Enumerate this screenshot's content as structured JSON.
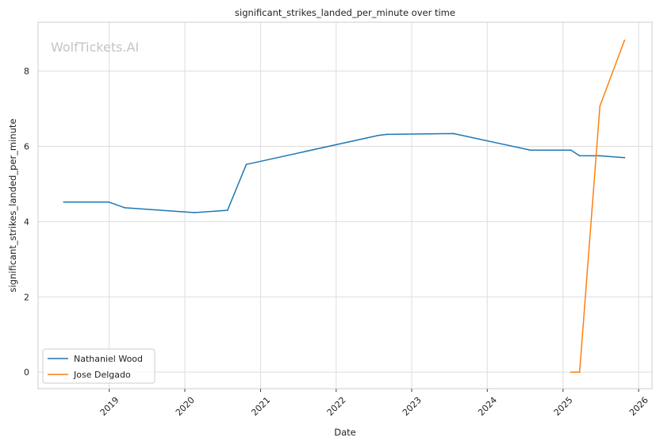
{
  "chart_data": {
    "type": "line",
    "title": "significant_strikes_landed_per_minute over time",
    "xlabel": "Date",
    "ylabel": "significant_strikes_landed_per_minute",
    "watermark": "WolfTickets.AI",
    "xlim": [
      "2018-01-22",
      "2026-03-07"
    ],
    "ylim": [
      -0.44,
      9.3
    ],
    "x_ticks": [
      {
        "date": "2019-01-01",
        "label": "2019"
      },
      {
        "date": "2020-01-01",
        "label": "2020"
      },
      {
        "date": "2021-01-01",
        "label": "2021"
      },
      {
        "date": "2022-01-01",
        "label": "2022"
      },
      {
        "date": "2023-01-01",
        "label": "2023"
      },
      {
        "date": "2024-01-01",
        "label": "2024"
      },
      {
        "date": "2025-01-01",
        "label": "2025"
      },
      {
        "date": "2026-01-01",
        "label": "2026"
      }
    ],
    "y_ticks": [
      {
        "value": 0,
        "label": "0"
      },
      {
        "value": 2,
        "label": "2"
      },
      {
        "value": 4,
        "label": "4"
      },
      {
        "value": 6,
        "label": "6"
      },
      {
        "value": 8,
        "label": "8"
      }
    ],
    "grid": true,
    "legend_position": "lower-left",
    "series": [
      {
        "name": "Nathaniel Wood",
        "color": "#1f77b4",
        "points": [
          {
            "x": "2018-05-26",
            "y": 4.52
          },
          {
            "x": "2018-12-29",
            "y": 4.52
          },
          {
            "x": "2019-03-16",
            "y": 4.37
          },
          {
            "x": "2020-02-15",
            "y": 4.24
          },
          {
            "x": "2020-07-25",
            "y": 4.3
          },
          {
            "x": "2020-10-24",
            "y": 5.52
          },
          {
            "x": "2022-07-23",
            "y": 6.29
          },
          {
            "x": "2022-09-03",
            "y": 6.32
          },
          {
            "x": "2023-07-22",
            "y": 6.34
          },
          {
            "x": "2024-07-27",
            "y": 5.9
          },
          {
            "x": "2025-02-08",
            "y": 5.9
          },
          {
            "x": "2025-03-22",
            "y": 5.75
          },
          {
            "x": "2025-06-28",
            "y": 5.75
          },
          {
            "x": "2025-10-25",
            "y": 5.7
          }
        ]
      },
      {
        "name": "Jose Delgado",
        "color": "#ff7f0e",
        "points": [
          {
            "x": "2025-02-08",
            "y": 0.0
          },
          {
            "x": "2025-03-22",
            "y": 0.0
          },
          {
            "x": "2025-06-28",
            "y": 7.07
          },
          {
            "x": "2025-10-25",
            "y": 8.82
          }
        ]
      }
    ]
  }
}
